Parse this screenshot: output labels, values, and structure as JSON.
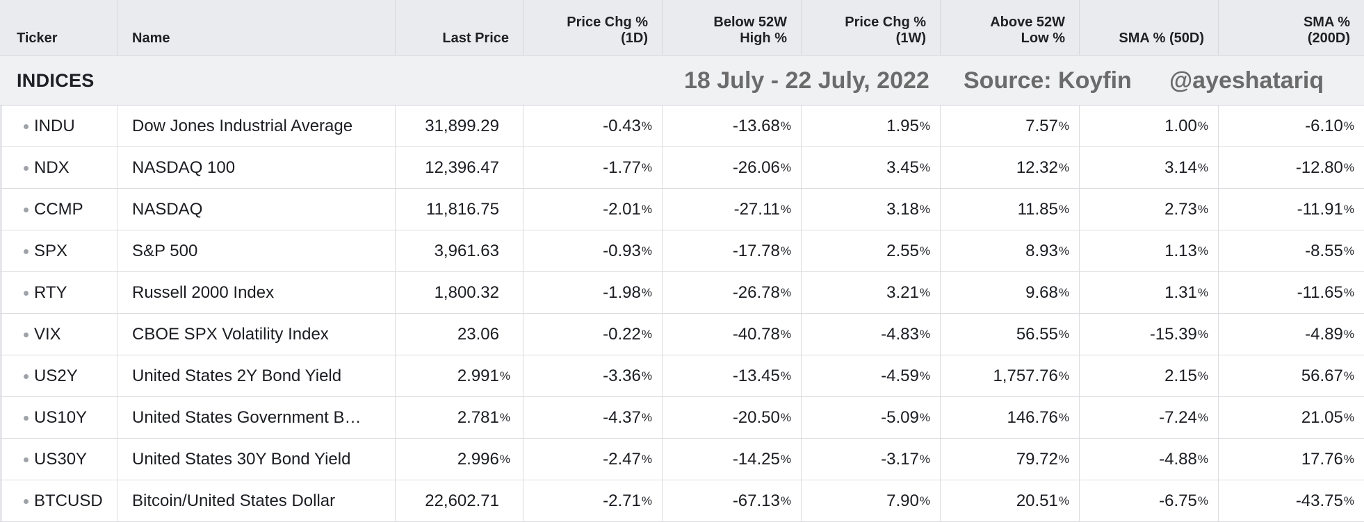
{
  "columns": {
    "ticker": "Ticker",
    "name": "Name",
    "last_price": "Last Price",
    "chg_1d": [
      "Price Chg %",
      "(1D)"
    ],
    "below_52w": [
      "Below 52W",
      "High %"
    ],
    "chg_1w": [
      "Price Chg %",
      "(1W)"
    ],
    "above_52w": [
      "Above 52W",
      "Low %"
    ],
    "sma50": "SMA % (50D)",
    "sma200": [
      "SMA %",
      "(200D)"
    ]
  },
  "group": {
    "title": "INDICES",
    "date_range": "18 July - 22 July, 2022",
    "source": "Source: Koyfin",
    "handle": "@ayeshatariq"
  },
  "colors": {
    "positive": "#157a37",
    "negative": "#d3282d",
    "header_bg": "#eaebee"
  },
  "rows": [
    {
      "ticker": "INDU",
      "name": "Dow Jones Industrial Average",
      "price": "31,899.29",
      "price_pct": false,
      "chg1d": "-0.43",
      "below52": "-13.68",
      "chg1w": "1.95",
      "above52": "7.57",
      "sma50": "1.00",
      "sma200": "-6.10"
    },
    {
      "ticker": "NDX",
      "name": "NASDAQ 100",
      "price": "12,396.47",
      "price_pct": false,
      "chg1d": "-1.77",
      "below52": "-26.06",
      "chg1w": "3.45",
      "above52": "12.32",
      "sma50": "3.14",
      "sma200": "-12.80"
    },
    {
      "ticker": "CCMP",
      "name": "NASDAQ",
      "price": "11,816.75",
      "price_pct": false,
      "chg1d": "-2.01",
      "below52": "-27.11",
      "chg1w": "3.18",
      "above52": "11.85",
      "sma50": "2.73",
      "sma200": "-11.91"
    },
    {
      "ticker": "SPX",
      "name": "S&P 500",
      "price": "3,961.63",
      "price_pct": false,
      "chg1d": "-0.93",
      "below52": "-17.78",
      "chg1w": "2.55",
      "above52": "8.93",
      "sma50": "1.13",
      "sma200": "-8.55"
    },
    {
      "ticker": "RTY",
      "name": "Russell 2000 Index",
      "price": "1,800.32",
      "price_pct": false,
      "chg1d": "-1.98",
      "below52": "-26.78",
      "chg1w": "3.21",
      "above52": "9.68",
      "sma50": "1.31",
      "sma200": "-11.65"
    },
    {
      "ticker": "VIX",
      "name": "CBOE SPX Volatility Index",
      "price": "23.06",
      "price_pct": false,
      "chg1d": "-0.22",
      "below52": "-40.78",
      "chg1w": "-4.83",
      "above52": "56.55",
      "sma50": "-15.39",
      "sma200": "-4.89"
    },
    {
      "ticker": "US2Y",
      "name": "United States 2Y Bond Yield",
      "price": "2.991",
      "price_pct": true,
      "chg1d": "-3.36",
      "below52": "-13.45",
      "chg1w": "-4.59",
      "above52": "1,757.76",
      "sma50": "2.15",
      "sma200": "56.67"
    },
    {
      "ticker": "US10Y",
      "name": "United States Government B…",
      "price": "2.781",
      "price_pct": true,
      "chg1d": "-4.37",
      "below52": "-20.50",
      "chg1w": "-5.09",
      "above52": "146.76",
      "sma50": "-7.24",
      "sma200": "21.05"
    },
    {
      "ticker": "US30Y",
      "name": "United States 30Y Bond Yield",
      "price": "2.996",
      "price_pct": true,
      "chg1d": "-2.47",
      "below52": "-14.25",
      "chg1w": "-3.17",
      "above52": "79.72",
      "sma50": "-4.88",
      "sma200": "17.76"
    },
    {
      "ticker": "BTCUSD",
      "name": "Bitcoin/United States Dollar",
      "price": "22,602.71",
      "price_pct": false,
      "chg1d": "-2.71",
      "below52": "-67.13",
      "chg1w": "7.90",
      "above52": "20.51",
      "sma50": "-6.75",
      "sma200": "-43.75"
    }
  ]
}
